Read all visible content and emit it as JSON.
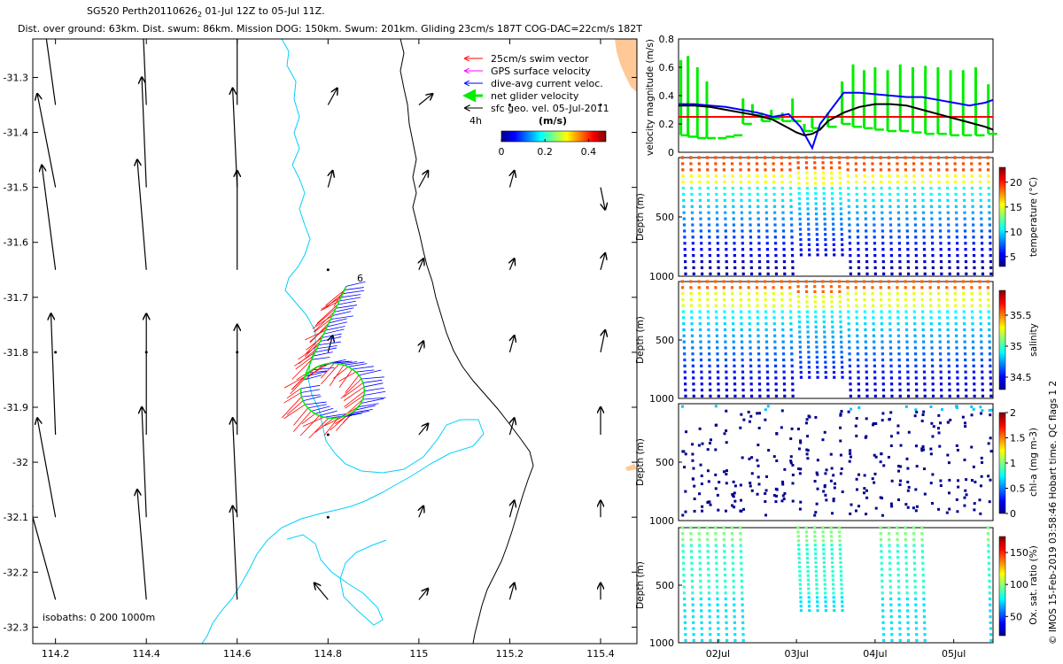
{
  "header": {
    "title_line1_main": "SG520 Perth20110626",
    "title_line1_sub": "2",
    "title_line1_rest": " 01-Jul 12Z to 05-Jul 11Z.",
    "title_line2": "Dist. over ground: 63km. Dist. swum: 86km. Mission DOG: 150km. Swum: 201km. Gliding 23cm/s 187T COG-DAC=22cm/s 182T"
  },
  "side_credit": "© IMOS 15-Feb-2019 03:58:46 Hobart time. QC flags 1  2",
  "colors": {
    "coast": "#000000",
    "isobath": "#00d0ff",
    "swim": "#ff0000",
    "gps": "#ff00ff",
    "dac": "#0000ff",
    "net": "#00ee00",
    "geo": "#000000",
    "ref_line": "#ff0000"
  },
  "chart_data": [
    {
      "id": "map",
      "type": "quiver",
      "xlim": [
        114.15,
        115.48
      ],
      "ylim": [
        -32.33,
        -31.23
      ],
      "x_ticks": [
        114.2,
        114.4,
        114.6,
        114.8,
        115,
        115.2,
        115.4
      ],
      "x_tick_labels": [
        "114.2",
        "114.4",
        "114.6",
        "114.8",
        "115",
        "115.2",
        "115.4"
      ],
      "y_ticks": [
        -31.3,
        -31.4,
        -31.5,
        -31.6,
        -31.7,
        -31.8,
        -31.9,
        -32,
        -32.1,
        -32.2,
        -32.3
      ],
      "y_tick_labels": [
        "-31.3",
        "-31.4",
        "-31.5",
        "-31.6",
        "-31.7",
        "-31.8",
        "-31.9",
        "-32",
        "-32.1",
        "-32.2",
        "-32.3"
      ],
      "legend": {
        "placement": "top-right",
        "entries": [
          "25cm/s swim vector",
          "GPS surface velocity",
          "dive-avg current veloc.",
          "net glider velocity",
          "sfc geo. vel. 05-Jul-2011"
        ],
        "note": "4h"
      },
      "colorbar": {
        "label": "(m/s)",
        "ticks": [
          0,
          0.2,
          0.4
        ],
        "tick_labels": [
          "0",
          "0.2",
          "0.4"
        ],
        "range": [
          0,
          0.48
        ]
      },
      "track_label": "6",
      "isobath_note": "isobaths: 0   200   1000m",
      "geo_grid_x": [
        114.2,
        114.4,
        114.6,
        114.8,
        115,
        115.2,
        115.4
      ],
      "geo_grid_y": [
        -31.35,
        -31.5,
        -31.65,
        -31.8,
        -31.95,
        -32.1,
        -32.25
      ],
      "geo_vectors": [
        [
          [
            -0.03,
            0.18
          ],
          [
            -0.01,
            0.19
          ],
          [
            0,
            0.15
          ],
          [
            0.02,
            0.03
          ],
          [
            0.03,
            0.02
          ],
          [
            0,
            0
          ],
          [
            0,
            0
          ]
        ],
        [
          [
            -0.04,
            0.17
          ],
          [
            -0.01,
            0.2
          ],
          [
            -0.01,
            0.18
          ],
          [
            0.01,
            0.03
          ],
          [
            0.02,
            0.03
          ],
          [
            0.01,
            0.03
          ],
          [
            0.01,
            -0.04
          ]
        ],
        [
          [
            -0.03,
            0.19
          ],
          [
            -0.02,
            0.2
          ],
          [
            0,
            0.18
          ],
          [
            0,
            0
          ],
          [
            0.01,
            0.02
          ],
          [
            0.01,
            0.02
          ],
          [
            0.01,
            0.03
          ]
        ],
        [
          [
            0,
            0
          ],
          [
            0,
            0
          ],
          [
            0,
            0
          ],
          [
            0.01,
            0.03
          ],
          [
            0.01,
            0.02
          ],
          [
            0.01,
            0.03
          ],
          [
            0.01,
            0.04
          ]
        ],
        [
          [
            -0.01,
            0.22
          ],
          [
            0,
            0.22
          ],
          [
            0,
            0.2
          ],
          [
            0,
            0
          ],
          [
            0.02,
            0.02
          ],
          [
            0.01,
            0.03
          ],
          [
            0,
            0.05
          ]
        ],
        [
          [
            -0.04,
            0.18
          ],
          [
            -0.01,
            0.2
          ],
          [
            -0.01,
            0.18
          ],
          [
            0,
            0
          ],
          [
            0.01,
            0.02
          ],
          [
            0.01,
            0.03
          ],
          [
            0,
            0.03
          ]
        ],
        [
          [
            -0.06,
            0.18
          ],
          [
            -0.02,
            0.2
          ],
          [
            -0.01,
            0.17
          ],
          [
            -0.03,
            0.03
          ],
          [
            0.02,
            0.02
          ],
          [
            0.01,
            0.03
          ],
          [
            0,
            0.03
          ]
        ]
      ]
    },
    {
      "id": "velocity",
      "type": "line",
      "x_range_days": [
        1.5,
        5.5
      ],
      "ylabel": "velocity magnitude (m/s)",
      "ylim": [
        0,
        0.8
      ],
      "y_ticks": [
        0,
        0.2,
        0.4,
        0.6,
        0.8
      ],
      "y_tick_labels": [
        "0",
        "0.2",
        "0.4",
        "0.6",
        "0.8"
      ],
      "ref_line": 0.25,
      "dac_x": [
        1.5,
        1.7,
        1.9,
        2.1,
        2.3,
        2.5,
        2.7,
        2.9,
        3.05,
        3.2,
        3.3,
        3.45,
        3.6,
        3.8,
        4.0,
        4.2,
        4.4,
        4.6,
        4.8,
        5.0,
        5.2,
        5.4,
        5.5
      ],
      "dac_y": [
        0.34,
        0.34,
        0.33,
        0.32,
        0.3,
        0.28,
        0.25,
        0.27,
        0.18,
        0.03,
        0.2,
        0.31,
        0.42,
        0.42,
        0.41,
        0.4,
        0.39,
        0.39,
        0.37,
        0.35,
        0.33,
        0.35,
        0.37
      ],
      "geo_x": [
        1.5,
        1.7,
        1.9,
        2.1,
        2.3,
        2.5,
        2.7,
        2.9,
        3.0,
        3.1,
        3.2,
        3.3,
        3.4,
        3.6,
        3.8,
        4.0,
        4.2,
        4.4,
        4.6,
        4.8,
        5.0,
        5.2,
        5.4,
        5.5
      ],
      "geo_y": [
        0.33,
        0.33,
        0.32,
        0.3,
        0.28,
        0.26,
        0.23,
        0.17,
        0.14,
        0.12,
        0.13,
        0.16,
        0.22,
        0.28,
        0.32,
        0.34,
        0.34,
        0.33,
        0.3,
        0.27,
        0.24,
        0.21,
        0.18,
        0.16
      ],
      "net_segments": [
        [
          1.53,
          0.12,
          0.65
        ],
        [
          1.62,
          0.11,
          0.68
        ],
        [
          1.74,
          0.1,
          0.6
        ],
        [
          1.86,
          0.1,
          0.5
        ],
        [
          2.0,
          0.1,
          0.1
        ],
        [
          2.1,
          0.11,
          0.11
        ],
        [
          2.2,
          0.12,
          0.12
        ],
        [
          2.32,
          0.2,
          0.38
        ],
        [
          2.44,
          0.26,
          0.34
        ],
        [
          2.56,
          0.22,
          0.28
        ],
        [
          2.68,
          0.24,
          0.3
        ],
        [
          2.82,
          0.22,
          0.28
        ],
        [
          2.95,
          0.22,
          0.38
        ],
        [
          3.1,
          0.15,
          0.2
        ],
        [
          3.2,
          0.17,
          0.25
        ],
        [
          3.4,
          0.18,
          0.28
        ],
        [
          3.58,
          0.2,
          0.5
        ],
        [
          3.72,
          0.18,
          0.62
        ],
        [
          3.86,
          0.17,
          0.58
        ],
        [
          4.0,
          0.16,
          0.6
        ],
        [
          4.16,
          0.15,
          0.58
        ],
        [
          4.32,
          0.15,
          0.62
        ],
        [
          4.48,
          0.14,
          0.6
        ],
        [
          4.64,
          0.13,
          0.61
        ],
        [
          4.8,
          0.13,
          0.6
        ],
        [
          4.96,
          0.12,
          0.58
        ],
        [
          5.12,
          0.12,
          0.58
        ],
        [
          5.28,
          0.12,
          0.6
        ],
        [
          5.44,
          0.13,
          0.48
        ]
      ]
    },
    {
      "id": "temperature",
      "type": "scatter",
      "x_range_days": [
        1.5,
        5.5
      ],
      "ylabel": "Depth (m)",
      "ylim": [
        1000,
        0
      ],
      "y_ticks": [
        500,
        1000
      ],
      "y_tick_labels": [
        "500",
        "1000"
      ],
      "colorbar_label": "temperature (°C)",
      "colorbar_ticks": [
        5,
        10,
        15,
        20
      ],
      "colorbar_range": [
        3,
        23
      ],
      "profiles": "1.55..5.45 step 0.105",
      "max_depth": 980
    },
    {
      "id": "salinity",
      "type": "scatter",
      "x_range_days": [
        1.5,
        5.5
      ],
      "ylabel": "Depth (m)",
      "ylim": [
        1000,
        0
      ],
      "y_ticks": [
        500,
        1000
      ],
      "y_tick_labels": [
        "500",
        "1000"
      ],
      "colorbar_label": "salinity",
      "colorbar_ticks": [
        34.5,
        35,
        35.5
      ],
      "colorbar_tick_labels": [
        "34.5",
        "35",
        "35.5"
      ],
      "colorbar_range": [
        34.3,
        35.9
      ],
      "max_depth": 980
    },
    {
      "id": "chla",
      "type": "scatter",
      "x_range_days": [
        1.5,
        5.5
      ],
      "ylabel": "Depth (m)",
      "ylim": [
        1000,
        0
      ],
      "y_ticks": [
        500,
        1000
      ],
      "y_tick_labels": [
        "500",
        "1000"
      ],
      "colorbar_label": "chl-a (mg m-3)",
      "colorbar_ticks": [
        0,
        0.5,
        1,
        1.5,
        2
      ],
      "colorbar_tick_labels": [
        "0",
        "0.5",
        "1",
        "1.5",
        "2"
      ],
      "colorbar_range": [
        0,
        2
      ]
    },
    {
      "id": "oxygen",
      "type": "scatter",
      "x_range_days": [
        1.5,
        5.5
      ],
      "ylabel": "Depth (m)",
      "ylim": [
        1000,
        0
      ],
      "y_ticks": [
        500,
        1000
      ],
      "y_tick_labels": [
        "500",
        "1000"
      ],
      "colorbar_label": "Ox. sat. ratio (%)",
      "colorbar_ticks": [
        50,
        100,
        150
      ],
      "colorbar_range": [
        20,
        175
      ],
      "x_ticks": [
        2,
        3,
        4,
        5
      ],
      "x_tick_labels": [
        "02Jul",
        "03Jul",
        "04Jul",
        "05Jul"
      ]
    }
  ]
}
